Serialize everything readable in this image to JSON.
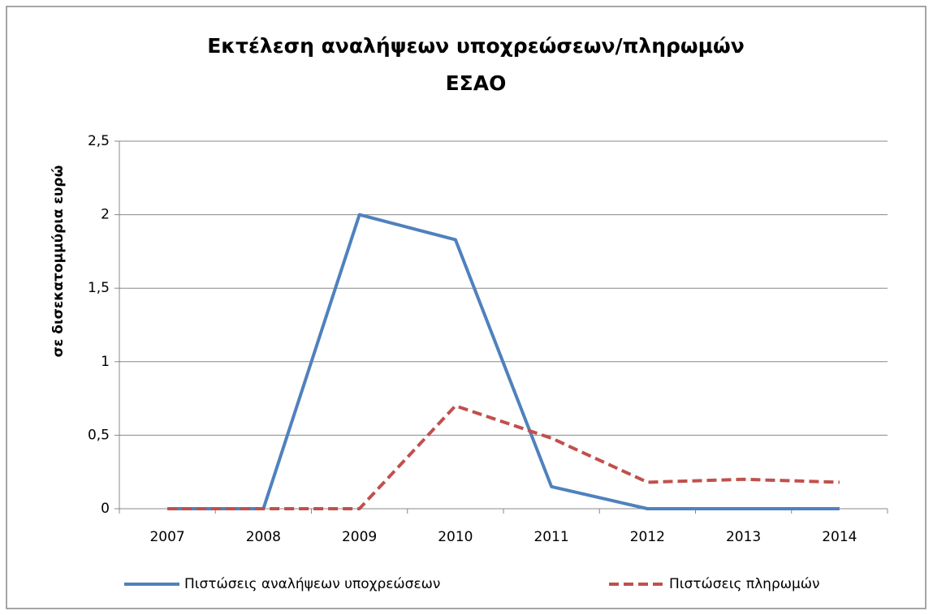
{
  "chart_data": {
    "type": "line",
    "title": [
      "Εκτέλεση αναλήψεων υποχρεώσεων/πληρωμών",
      "ΕΣΑΟ"
    ],
    "ylabel": "σε δισεκατομμύρια ευρώ",
    "categories": [
      "2007",
      "2008",
      "2009",
      "2010",
      "2011",
      "2012",
      "2013",
      "2014"
    ],
    "series": [
      {
        "name": "Πιστώσεις αναλήψεων υποχρεώσεων",
        "color": "#4f81bd",
        "dash": false,
        "values": [
          0,
          0,
          2.0,
          1.83,
          0.15,
          0,
          0,
          0
        ]
      },
      {
        "name": "Πιστώσεις πληρωμών",
        "color": "#c0504d",
        "dash": true,
        "values": [
          0,
          0,
          0,
          0.7,
          0.48,
          0.18,
          0.2,
          0.18
        ]
      }
    ],
    "ylim": [
      0,
      2.5
    ],
    "yticks": [
      0,
      {
        "value": 0.5,
        "label": "0,5"
      },
      1,
      {
        "value": 1.5,
        "label": "1,5"
      },
      2,
      {
        "value": 2.5,
        "label": "2,5"
      }
    ],
    "grid": true,
    "legend": "bottom"
  }
}
